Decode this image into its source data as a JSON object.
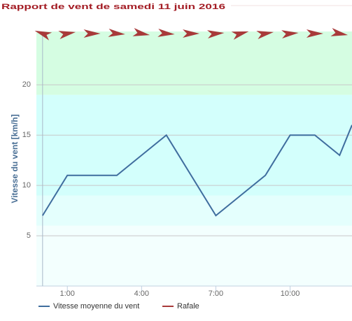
{
  "chart_data": {
    "type": "line",
    "title": "Rapport de vent de samedi 11 juin 2016",
    "y_label": "Vitesse du vent [km/h]",
    "x": [
      0,
      1,
      2,
      3,
      4,
      5,
      6,
      7,
      8,
      9,
      10,
      11,
      12,
      12.5
    ],
    "xlim": [
      -0.25,
      12.5
    ],
    "xticks": [
      {
        "value": 1,
        "label": "1:00"
      },
      {
        "value": 4,
        "label": "4:00"
      },
      {
        "value": 7,
        "label": "7:00"
      },
      {
        "value": 10,
        "label": "10:00"
      }
    ],
    "ylim": [
      0,
      25.3
    ],
    "yticks": [
      5,
      10,
      15,
      20
    ],
    "grid": true,
    "bands": [
      {
        "from": 0,
        "to": 6,
        "color": "#f3fffe"
      },
      {
        "from": 6,
        "to": 9,
        "color": "#e4fffd"
      },
      {
        "from": 9,
        "to": 19,
        "color": "#d3fffc"
      },
      {
        "from": 19,
        "to": 25.3,
        "color": "#d5fde2"
      }
    ],
    "series": [
      {
        "name": "Vitesse moyenne du vent",
        "color": "#3f6d9e",
        "values": [
          7,
          11,
          11,
          11,
          13,
          15,
          11,
          7,
          9,
          11,
          15,
          15,
          13,
          16
        ]
      },
      {
        "name": "Rafale",
        "color": "#a83a3a",
        "x": [
          0,
          1,
          2,
          3,
          4,
          5,
          6,
          7,
          8,
          9,
          10,
          11,
          12
        ],
        "directions": [
          200,
          -10,
          0,
          5,
          10,
          5,
          0,
          -5,
          -15,
          -10,
          -5,
          0,
          10
        ]
      }
    ]
  }
}
